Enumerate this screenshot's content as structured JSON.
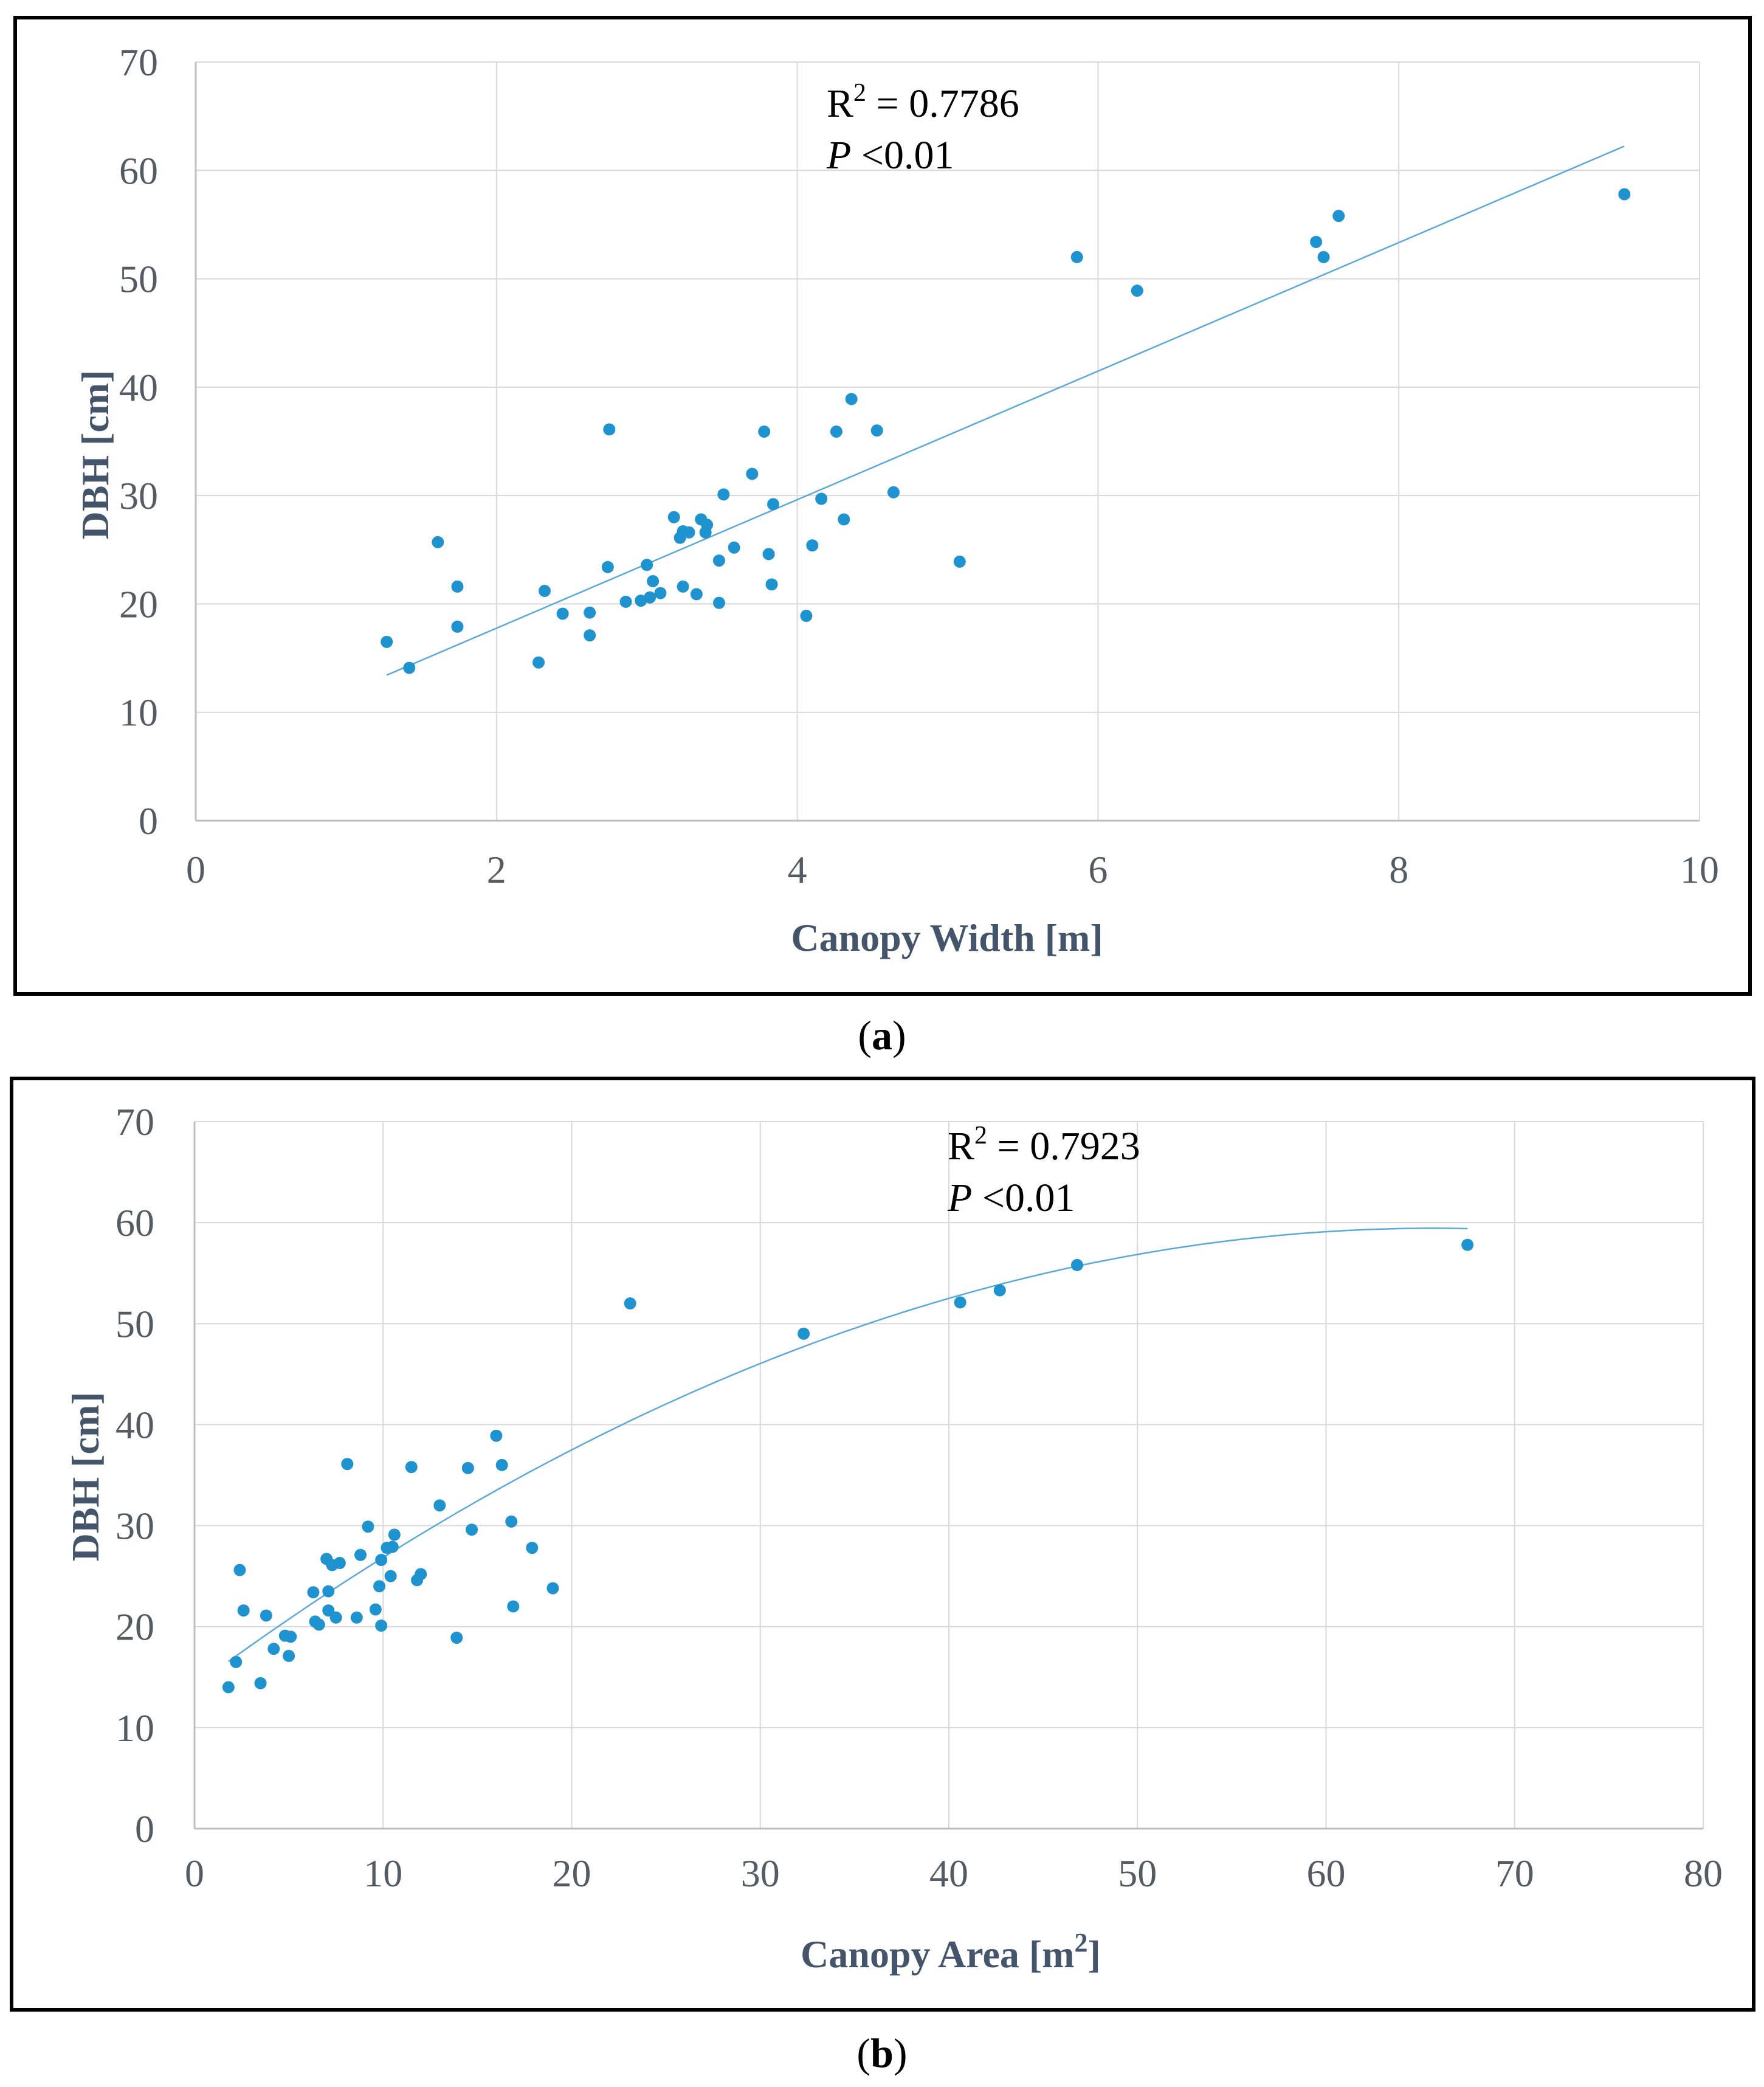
{
  "chart_data": [
    {
      "id": "a",
      "type": "scatter",
      "caption": "a",
      "xlabel": "Canopy Width  [m]",
      "ylabel": "DBH [cm]",
      "xlim": [
        0,
        10
      ],
      "ylim": [
        0,
        70
      ],
      "xticks": [
        0,
        2,
        4,
        6,
        8,
        10
      ],
      "yticks": [
        0,
        10,
        20,
        30,
        40,
        50,
        60,
        70
      ],
      "grid": true,
      "colors": {
        "marker": "#1f93d0",
        "trendline": "#5ba9d8",
        "grid": "#d9d9d9",
        "axis": "#bfbfbf"
      },
      "annotation": {
        "r2_label": "R",
        "r2_value": " = 0.7786",
        "p_label": "P",
        "p_value": " <0.01"
      },
      "trendline": {
        "type": "linear",
        "x_range": [
          1.27,
          9.5
        ],
        "slope": 5.93,
        "intercept": 5.9
      },
      "x": [
        1.27,
        1.42,
        1.61,
        1.74,
        1.74,
        2.28,
        2.32,
        2.44,
        2.62,
        2.62,
        2.74,
        2.75,
        2.86,
        2.96,
        3.0,
        3.02,
        3.04,
        3.09,
        3.18,
        3.22,
        3.24,
        3.24,
        3.28,
        3.33,
        3.36,
        3.39,
        3.4,
        3.48,
        3.48,
        3.51,
        3.58,
        3.7,
        3.78,
        3.81,
        3.83,
        3.84,
        4.06,
        4.1,
        4.16,
        4.26,
        4.31,
        4.36,
        4.53,
        4.64,
        5.08,
        5.86,
        6.26,
        7.45,
        7.5,
        7.6,
        9.5
      ],
      "y": [
        16.5,
        14.1,
        25.7,
        17.9,
        21.6,
        14.6,
        21.2,
        19.1,
        17.1,
        19.2,
        23.4,
        36.1,
        20.2,
        20.3,
        23.6,
        20.6,
        22.1,
        21.0,
        28.0,
        26.1,
        26.7,
        21.6,
        26.6,
        20.9,
        27.8,
        26.6,
        27.3,
        24.0,
        20.1,
        30.1,
        25.2,
        32.0,
        35.9,
        24.6,
        21.8,
        29.2,
        18.9,
        25.4,
        29.7,
        35.9,
        27.8,
        38.9,
        36.0,
        30.3,
        23.9,
        52.0,
        48.9,
        53.4,
        52.0,
        55.8,
        57.8
      ]
    },
    {
      "id": "b",
      "type": "scatter",
      "caption": "b",
      "xlabel": "Canopy Area  [m",
      "xlabel_sup": "2",
      "xlabel_end": "]",
      "ylabel": "DBH [cm]",
      "xlim": [
        0,
        80
      ],
      "ylim": [
        0,
        70
      ],
      "xticks": [
        0,
        10,
        20,
        30,
        40,
        50,
        60,
        70,
        80
      ],
      "yticks": [
        0,
        10,
        20,
        30,
        40,
        50,
        60,
        70
      ],
      "grid": true,
      "colors": {
        "marker": "#1f93d0",
        "trendline": "#5ba9d8",
        "grid": "#d9d9d9",
        "axis": "#bfbfbf"
      },
      "annotation": {
        "r2_label": "R",
        "r2_value": " = 0.7923",
        "p_label": "P",
        "p_value": " <0.01"
      },
      "trendline": {
        "type": "polynomial",
        "x_range": [
          1.8,
          67.5
        ],
        "coefficients": [
          14.1,
          1.38,
          -0.0105
        ]
      },
      "x": [
        1.8,
        2.2,
        2.4,
        2.6,
        3.5,
        3.8,
        4.2,
        4.8,
        5.0,
        5.1,
        6.3,
        6.4,
        6.6,
        7.0,
        7.1,
        7.1,
        7.3,
        7.5,
        7.7,
        8.1,
        8.6,
        8.8,
        9.2,
        9.6,
        9.8,
        9.9,
        9.9,
        10.2,
        10.4,
        10.5,
        10.6,
        11.5,
        11.8,
        12.0,
        13.0,
        13.9,
        14.5,
        14.7,
        16.0,
        16.3,
        16.8,
        16.9,
        17.9,
        19.0,
        23.1,
        32.3,
        40.6,
        42.7,
        46.8,
        67.5
      ],
      "y": [
        14.0,
        16.5,
        25.6,
        21.6,
        14.4,
        21.1,
        17.8,
        19.1,
        17.1,
        19.0,
        23.4,
        20.5,
        20.2,
        26.7,
        21.6,
        23.5,
        26.1,
        20.9,
        26.3,
        36.1,
        20.9,
        27.1,
        29.9,
        21.7,
        24.0,
        20.1,
        26.6,
        27.8,
        25.0,
        27.9,
        29.1,
        35.8,
        24.6,
        25.2,
        32.0,
        18.9,
        35.7,
        29.6,
        38.9,
        36.0,
        30.4,
        22.0,
        27.8,
        23.8,
        52.0,
        49.0,
        52.1,
        53.3,
        55.8,
        57.8
      ]
    }
  ]
}
